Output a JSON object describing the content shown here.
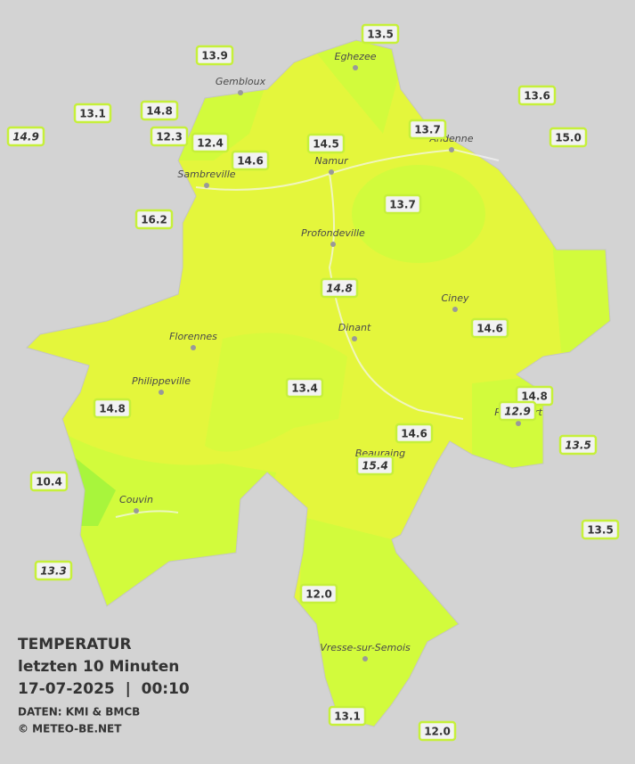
{
  "title": "TEMPERATUR",
  "subtitle": "letzten 10 Minuten",
  "datetime": "17-07-2025  |  00:10",
  "source": "DATEN: KMI & BMCB",
  "credit": "© METEO-BE.NET",
  "stations": [
    {
      "value": "13.5",
      "italic": false
    },
    {
      "value": "13.9",
      "italic": false
    },
    {
      "value": "13.6",
      "italic": false
    },
    {
      "value": "13.1",
      "italic": false
    },
    {
      "value": "14.8",
      "italic": false
    },
    {
      "value": "14.9",
      "italic": true
    },
    {
      "value": "12.3",
      "italic": false
    },
    {
      "value": "12.4",
      "italic": false
    },
    {
      "value": "13.7",
      "italic": false
    },
    {
      "value": "15.0",
      "italic": false
    },
    {
      "value": "14.5",
      "italic": false
    },
    {
      "value": "14.6",
      "italic": false
    },
    {
      "value": "16.2",
      "italic": false
    },
    {
      "value": "13.7",
      "italic": false
    },
    {
      "value": "14.8",
      "italic": true
    },
    {
      "value": "14.6",
      "italic": false
    },
    {
      "value": "14.8",
      "italic": false
    },
    {
      "value": "12.9",
      "italic": true
    },
    {
      "value": "13.4",
      "italic": false
    },
    {
      "value": "14.8",
      "italic": false
    },
    {
      "value": "14.6",
      "italic": false
    },
    {
      "value": "13.5",
      "italic": true
    },
    {
      "value": "15.4",
      "italic": true
    },
    {
      "value": "10.4",
      "italic": false
    },
    {
      "value": "13.5",
      "italic": false
    },
    {
      "value": "13.3",
      "italic": true
    },
    {
      "value": "12.0",
      "italic": false
    },
    {
      "value": "13.1",
      "italic": false
    },
    {
      "value": "12.0",
      "italic": false
    }
  ],
  "cities": [
    "Eghezee",
    "Gembloux",
    "Andenne",
    "Namur",
    "Sambreville",
    "Profondeville",
    "Ciney",
    "Dinant",
    "Florennes",
    "Philippeville",
    "Rochefort",
    "Beauraing",
    "Couvin",
    "Vresse-sur-Semois"
  ]
}
